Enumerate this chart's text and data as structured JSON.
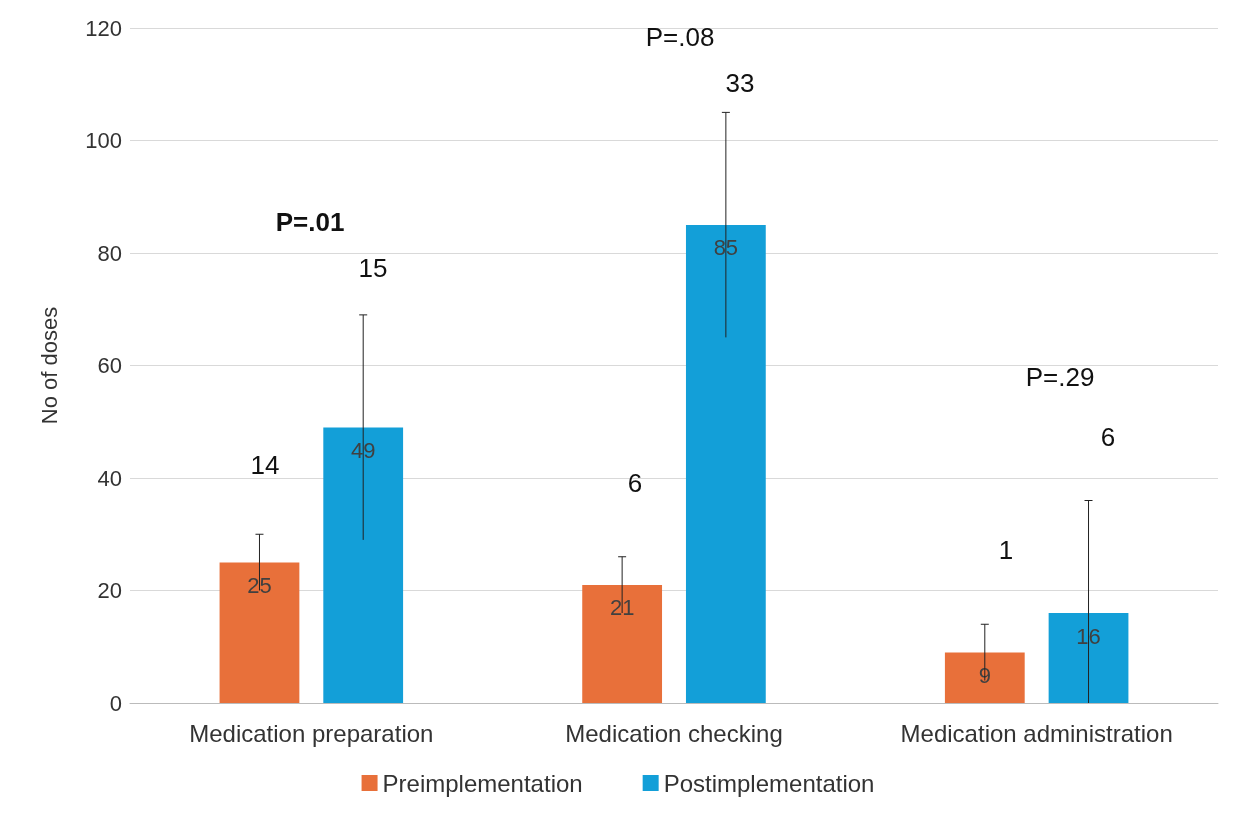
{
  "chart_data": {
    "type": "bar",
    "ylabel": "No of doses",
    "categories": [
      "Medication preparation",
      "Medication checking",
      "Medication administration"
    ],
    "series": [
      {
        "name": "Preimplementation",
        "color": "#e8703a",
        "values": [
          25,
          21,
          9
        ],
        "errors": [
          [
            20,
            30
          ],
          [
            16,
            26
          ],
          [
            4,
            14
          ]
        ]
      },
      {
        "name": "Postimplementation",
        "color": "#139fd8",
        "values": [
          49,
          85,
          16
        ],
        "errors": [
          [
            29,
            69
          ],
          [
            65,
            105
          ],
          [
            0,
            36
          ]
        ]
      }
    ],
    "data_labels": true,
    "ylim": [
      0,
      120
    ],
    "yticks": [
      0,
      20,
      40,
      60,
      80,
      100,
      120
    ],
    "grid": "y",
    "legend": "bottom",
    "annotations": [
      "P=.01",
      "14",
      "15",
      "P=.08",
      "33",
      "6",
      "P=.29",
      "6",
      "1"
    ]
  }
}
